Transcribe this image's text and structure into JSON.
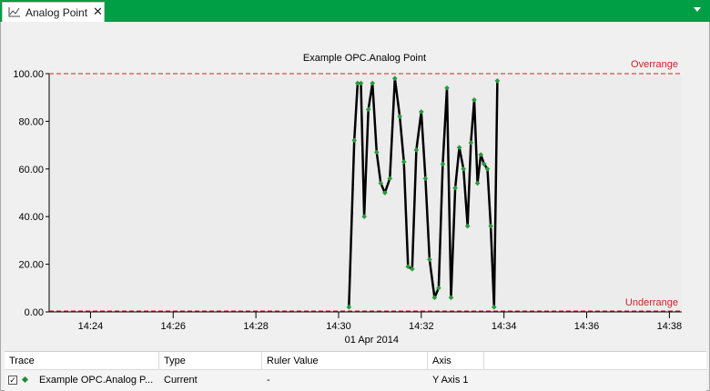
{
  "tab": {
    "label": "Analog Point",
    "close_glyph": "✕",
    "icon": "line-chart-icon"
  },
  "colors": {
    "tabbar": "#009e45",
    "limit": "#d0202a",
    "trace": "#000000",
    "marker": "#2a9a3a"
  },
  "chart_data": {
    "type": "line",
    "title": "Example OPC.Analog Point",
    "xlabel": "01 Apr 2014",
    "ylabel": "",
    "ylim": [
      0,
      100
    ],
    "xlim": [
      "14:23.0",
      "14:38.3"
    ],
    "y_ticks": [
      "0.00",
      "20.00",
      "40.00",
      "60.00",
      "80.00",
      "100.00"
    ],
    "x_ticks": [
      "14:24",
      "14:26",
      "14:28",
      "14:30",
      "14:32",
      "14:34",
      "14:36",
      "14:38"
    ],
    "grid": false,
    "overrange": {
      "label": "Overrange",
      "value": 100
    },
    "underrange": {
      "label": "Underrange",
      "value": 0
    },
    "series": [
      {
        "name": "Example OPC.Analog Point",
        "x": [
          "14:30.25",
          "14:30.38",
          "14:30.46",
          "14:30.54",
          "14:30.62",
          "14:30.72",
          "14:30.82",
          "14:30.92",
          "14:31.02",
          "14:31.12",
          "14:31.24",
          "14:31.36",
          "14:31.48",
          "14:31.58",
          "14:31.68",
          "14:31.78",
          "14:31.88",
          "14:32.0",
          "14:32.1",
          "14:32.2",
          "14:32.32",
          "14:32.42",
          "14:32.52",
          "14:32.62",
          "14:32.72",
          "14:32.82",
          "14:32.92",
          "14:33.02",
          "14:33.12",
          "14:33.2",
          "14:33.28",
          "14:33.36",
          "14:33.44",
          "14:33.52",
          "14:33.6",
          "14:33.68",
          "14:33.76",
          "14:33.84"
        ],
        "values": [
          2,
          72,
          96,
          96,
          40,
          85,
          96,
          67,
          54,
          50,
          56,
          98,
          82,
          63,
          19,
          18,
          68,
          84,
          56,
          22,
          6,
          10,
          62,
          94,
          6,
          52,
          69,
          60,
          36,
          71,
          89,
          54,
          66,
          62,
          60,
          36,
          2,
          97
        ]
      }
    ]
  },
  "table": {
    "columns": [
      "Trace",
      "Type",
      "Ruler Value",
      "Axis"
    ],
    "rows": [
      {
        "checked_glyph": "✓",
        "trace": "Example OPC.Analog P...",
        "type": "Current",
        "ruler_value": "-",
        "axis": "Y Axis 1"
      }
    ]
  }
}
